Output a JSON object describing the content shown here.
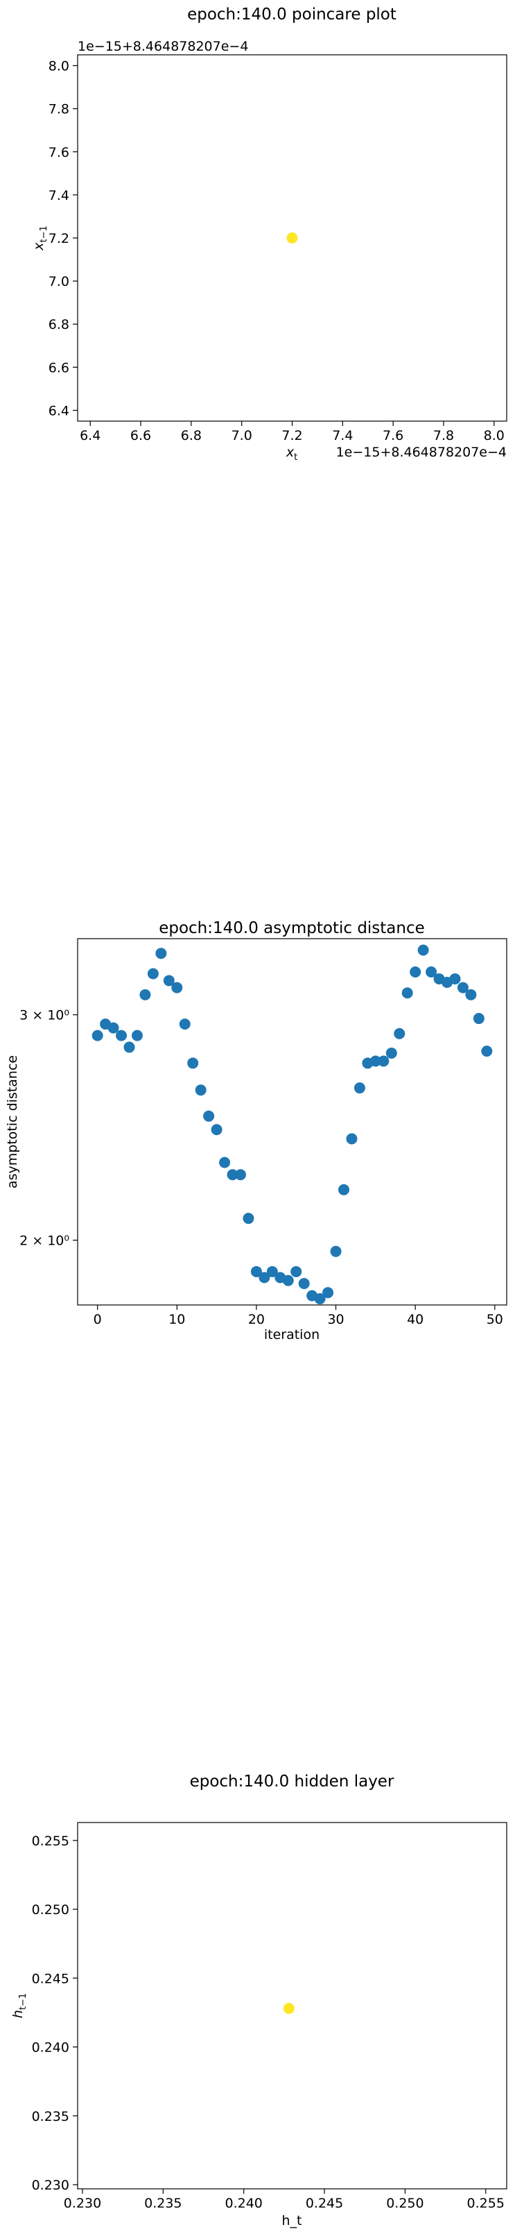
{
  "chart_data": [
    {
      "type": "scatter",
      "title": "epoch:140.0 poincare plot",
      "xlabel": "x_t",
      "ylabel": "x_{t−1}",
      "offset_label_x": "1e−15+8.464878207e−4",
      "offset_label_y": "1e−15+8.464878207e−4",
      "xlim": [
        6.35,
        8.05
      ],
      "ylim": [
        6.35,
        8.05
      ],
      "xticks": [
        6.4,
        6.6,
        6.8,
        7.0,
        7.2,
        7.4,
        7.6,
        7.8,
        8.0
      ],
      "yticks": [
        6.4,
        6.6,
        6.8,
        7.0,
        7.2,
        7.4,
        7.6,
        7.8,
        8.0
      ],
      "xtick_labels": [
        "6.4",
        "6.6",
        "6.8",
        "7.0",
        "7.2",
        "7.4",
        "7.6",
        "7.8",
        "8.0"
      ],
      "ytick_labels": [
        "6.4",
        "6.6",
        "6.8",
        "7.0",
        "7.2",
        "7.4",
        "7.6",
        "7.8",
        "8.0"
      ],
      "points": [
        {
          "x": 7.2,
          "y": 7.2
        }
      ],
      "color": "#fde725",
      "grid": false
    },
    {
      "type": "scatter",
      "title": "epoch:140.0 asymptotic distance",
      "xlabel": "iteration",
      "ylabel": "asymptotic distance",
      "yscale": "log",
      "xlim": [
        -2.5,
        51.5
      ],
      "ylim": [
        1.78,
        3.44
      ],
      "xticks": [
        0,
        10,
        20,
        30,
        40,
        50
      ],
      "xtick_labels": [
        "0",
        "10",
        "20",
        "30",
        "40",
        "50"
      ],
      "yticks": [
        2,
        3
      ],
      "ytick_labels": [
        "2 × 10⁰",
        "3 × 10⁰"
      ],
      "x": [
        0,
        1,
        2,
        3,
        4,
        5,
        6,
        7,
        8,
        9,
        10,
        11,
        12,
        13,
        14,
        15,
        16,
        17,
        18,
        19,
        20,
        21,
        22,
        23,
        24,
        25,
        26,
        27,
        28,
        29,
        30,
        31,
        32,
        33,
        34,
        35,
        36,
        37,
        38,
        39,
        40,
        41,
        42,
        43,
        44,
        45,
        46,
        47,
        48,
        49
      ],
      "y": [
        2.89,
        2.95,
        2.93,
        2.89,
        2.83,
        2.89,
        3.11,
        3.23,
        3.35,
        3.19,
        3.15,
        2.95,
        2.75,
        2.62,
        2.5,
        2.44,
        2.3,
        2.25,
        2.25,
        2.08,
        1.89,
        1.87,
        1.89,
        1.87,
        1.86,
        1.89,
        1.85,
        1.81,
        1.8,
        1.82,
        1.96,
        2.19,
        2.4,
        2.63,
        2.75,
        2.76,
        2.76,
        2.8,
        2.9,
        3.12,
        3.24,
        3.37,
        3.24,
        3.2,
        3.18,
        3.2,
        3.15,
        3.11,
        2.98,
        2.81
      ],
      "color": "#1f77b4",
      "grid": false
    },
    {
      "type": "scatter",
      "title": "epoch:140.0 hidden layer",
      "xlabel": "h_t",
      "ylabel": "h_{t−1}",
      "xlim": [
        0.2297,
        0.2563
      ],
      "ylim": [
        0.2297,
        0.2563
      ],
      "xticks": [
        0.23,
        0.235,
        0.24,
        0.245,
        0.25,
        0.255
      ],
      "yticks": [
        0.23,
        0.235,
        0.24,
        0.245,
        0.25,
        0.255
      ],
      "xtick_labels": [
        "0.230",
        "0.235",
        "0.240",
        "0.245",
        "0.250",
        "0.255"
      ],
      "ytick_labels": [
        "0.230",
        "0.235",
        "0.240",
        "0.245",
        "0.250",
        "0.255"
      ],
      "points": [
        {
          "x": 0.2428,
          "y": 0.2428
        }
      ],
      "color": "#fde725",
      "grid": false
    }
  ]
}
